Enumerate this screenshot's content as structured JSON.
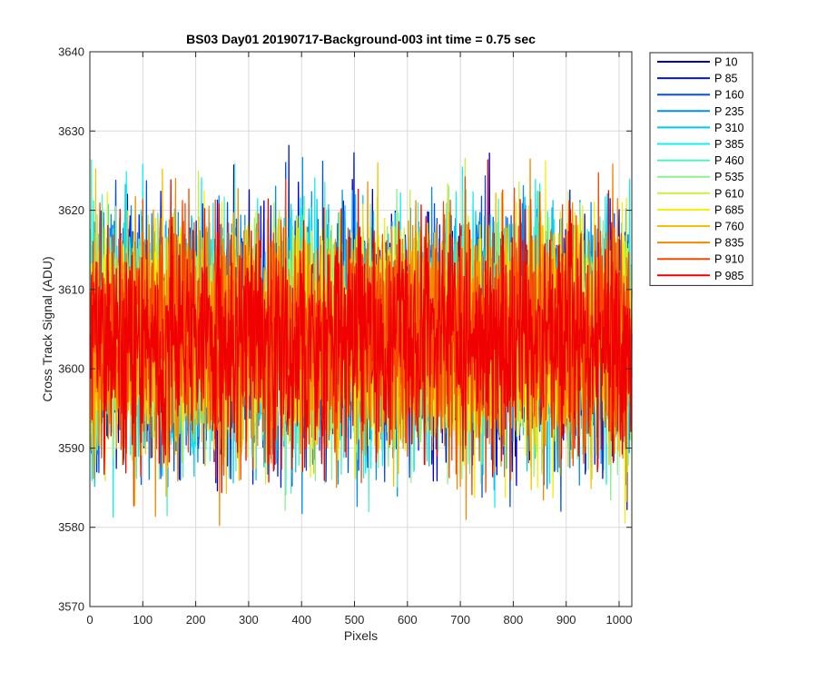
{
  "chart_data": {
    "type": "line",
    "title": "BS03 Day01 20190717-Background-003 int time = 0.75 sec",
    "xlabel": "Pixels",
    "ylabel": "Cross Track Signal (ADU)",
    "xlim": [
      0,
      1024
    ],
    "ylim": [
      3570,
      3640
    ],
    "xticks": [
      "0",
      "100",
      "200",
      "300",
      "400",
      "500",
      "600",
      "700",
      "800",
      "900",
      "1000"
    ],
    "yticks": [
      "3570",
      "3580",
      "3590",
      "3600",
      "3610",
      "3620",
      "3630",
      "3640"
    ],
    "grid": true,
    "legend_position": "outside-top-right",
    "x_range": [
      1,
      1024
    ],
    "mean_level": 3604,
    "noise_range": [
      3572,
      3637
    ],
    "series": [
      {
        "name": "P 10",
        "color": "#0000C8"
      },
      {
        "name": "P 85",
        "color": "#0016E6"
      },
      {
        "name": "P 160",
        "color": "#0050F0"
      },
      {
        "name": "P 235",
        "color": "#0090F0"
      },
      {
        "name": "P 310",
        "color": "#00C8F5"
      },
      {
        "name": "P 385",
        "color": "#10F0F0"
      },
      {
        "name": "P 460",
        "color": "#50F0C0"
      },
      {
        "name": "P 535",
        "color": "#90F090"
      },
      {
        "name": "P 610",
        "color": "#C8F040"
      },
      {
        "name": "P 685",
        "color": "#F5F000"
      },
      {
        "name": "P 760",
        "color": "#F5C000"
      },
      {
        "name": "P 835",
        "color": "#F58800"
      },
      {
        "name": "P 910",
        "color": "#F54800"
      },
      {
        "name": "P 985",
        "color": "#F00000"
      }
    ]
  }
}
